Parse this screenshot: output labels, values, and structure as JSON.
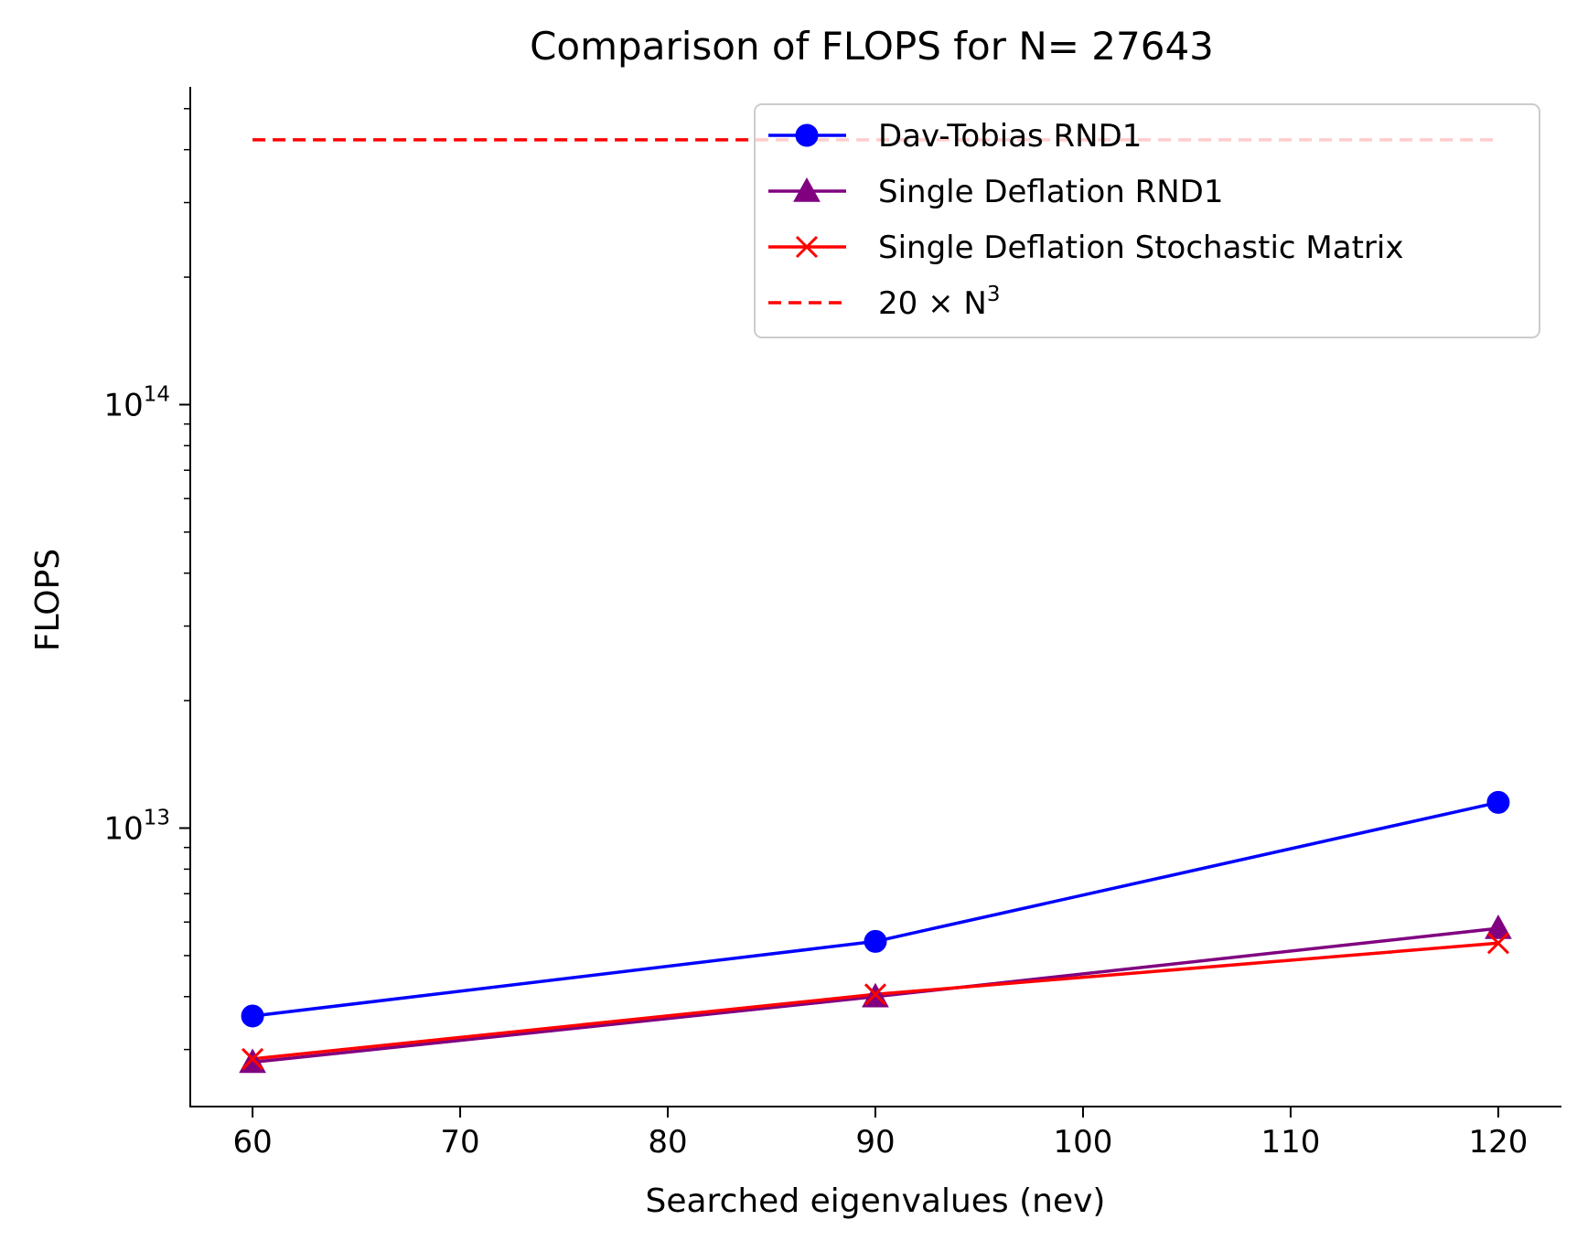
{
  "chart_data": {
    "type": "line",
    "title": "Comparison of FLOPS for N= 27643",
    "xlabel": "Searched eigenvalues (nev)",
    "ylabel": "FLOPS",
    "xlim": [
      57,
      123
    ],
    "ylim": [
      2200000000000.0,
      560000000000000.0
    ],
    "yscale": "log",
    "x_ticks": [
      {
        "value": 60,
        "label": "60"
      },
      {
        "value": 70,
        "label": "70"
      },
      {
        "value": 80,
        "label": "80"
      },
      {
        "value": 90,
        "label": "90"
      },
      {
        "value": 100,
        "label": "100"
      },
      {
        "value": 110,
        "label": "110"
      },
      {
        "value": 120,
        "label": "120"
      }
    ],
    "y_major_ticks": [
      {
        "value": 10000000000000.0,
        "base": "10",
        "exp": "13"
      },
      {
        "value": 100000000000000.0,
        "base": "10",
        "exp": "14"
      }
    ],
    "y_minor_ticks": [
      3000000000000.0,
      4000000000000.0,
      5000000000000.0,
      6000000000000.0,
      7000000000000.0,
      8000000000000.0,
      9000000000000.0,
      20000000000000.0,
      30000000000000.0,
      40000000000000.0,
      50000000000000.0,
      60000000000000.0,
      70000000000000.0,
      80000000000000.0,
      90000000000000.0,
      200000000000000.0,
      300000000000000.0,
      400000000000000.0,
      500000000000000.0
    ],
    "grid": false,
    "legend_position": "top-right",
    "series": [
      {
        "name": "Dav-Tobias RND1",
        "color": "#0000ff",
        "marker": "circle",
        "linestyle": "solid",
        "x": [
          60,
          90,
          120
        ],
        "values": [
          3600000000000.0,
          5400000000000.0,
          11500000000000.0
        ]
      },
      {
        "name": "Single Deflation RND1",
        "color": "#800080",
        "marker": "triangle",
        "linestyle": "solid",
        "x": [
          60,
          90,
          120
        ],
        "values": [
          2800000000000.0,
          4000000000000.0,
          5800000000000.0
        ]
      },
      {
        "name": "Single Deflation Stochastic Matrix",
        "color": "#ff0000",
        "marker": "x",
        "linestyle": "solid",
        "x": [
          60,
          90,
          120
        ],
        "values": [
          2850000000000.0,
          4050000000000.0,
          5350000000000.0
        ]
      },
      {
        "name": "20 × N",
        "name_superscript": "3",
        "color": "#ff0000",
        "marker": "none",
        "linestyle": "dashed",
        "x": [
          60,
          120
        ],
        "values": [
          422000000000000.0,
          422000000000000.0
        ]
      }
    ]
  }
}
